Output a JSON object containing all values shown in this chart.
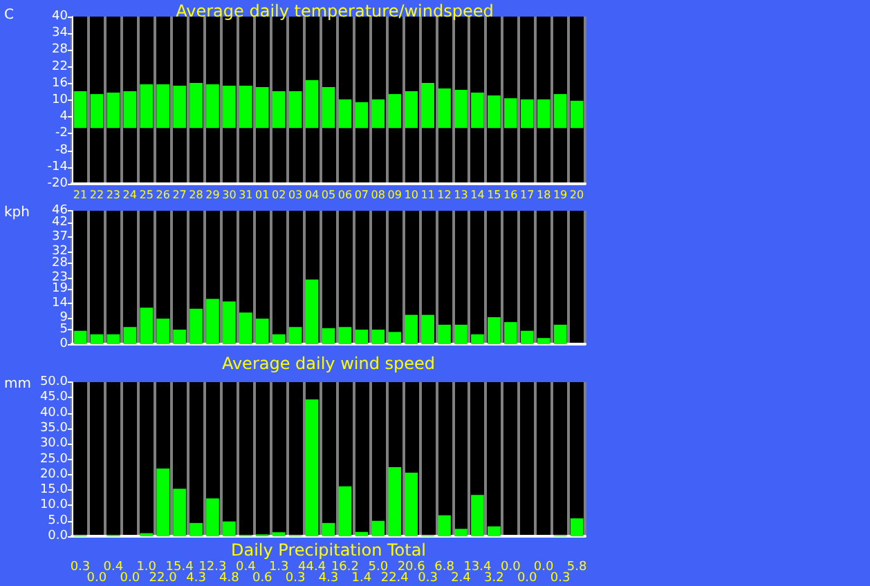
{
  "chart_data": [
    {
      "type": "bar",
      "title": "Average daily temperature/windspeed",
      "ylabel": "C",
      "categories": [
        "21",
        "22",
        "23",
        "24",
        "25",
        "26",
        "27",
        "28",
        "29",
        "30",
        "31",
        "01",
        "02",
        "03",
        "04",
        "05",
        "06",
        "07",
        "08",
        "09",
        "10",
        "11",
        "12",
        "13",
        "14",
        "15",
        "16",
        "17",
        "18",
        "19",
        "20"
      ],
      "values": [
        13.2,
        12.2,
        12.7,
        13.2,
        15.7,
        15.7,
        15.2,
        16.2,
        15.7,
        15.2,
        15.2,
        14.7,
        13.2,
        13.2,
        17.2,
        14.7,
        10.3,
        9.3,
        10.3,
        12.2,
        13.2,
        16.2,
        14.2,
        13.7,
        12.7,
        11.7,
        10.7,
        10.3,
        10.3,
        12.2,
        9.8
      ],
      "color": "#00ff00",
      "ylim": [
        -20,
        40
      ],
      "yticks": [
        -20,
        -14,
        -8,
        -2,
        4,
        10,
        16,
        22,
        28,
        34,
        40
      ],
      "grid": "x"
    },
    {
      "type": "bar",
      "xlabel": "Average daily wind speed",
      "ylabel": "kph",
      "categories": [
        "21",
        "22",
        "23",
        "24",
        "25",
        "26",
        "27",
        "28",
        "29",
        "30",
        "31",
        "01",
        "02",
        "03",
        "04",
        "05",
        "06",
        "07",
        "08",
        "09",
        "10",
        "11",
        "12",
        "13",
        "14",
        "15",
        "16",
        "17",
        "18",
        "19",
        "20"
      ],
      "values": [
        4.6,
        3.4,
        3.4,
        5.9,
        12.6,
        8.8,
        5.0,
        12.2,
        15.6,
        14.7,
        10.9,
        8.8,
        3.4,
        5.9,
        22.3,
        5.5,
        5.9,
        5.0,
        5.0,
        4.2,
        10.1,
        10.1,
        6.7,
        6.7,
        3.4,
        9.3,
        7.6,
        4.6,
        2.1,
        6.7,
        0
      ],
      "color": "#00ff00",
      "ylim": [
        0,
        46
      ],
      "yticks": [
        0,
        5,
        9,
        14,
        19,
        23,
        28,
        32,
        37,
        42,
        46
      ],
      "grid": "x",
      "tick_labels": "y"
    },
    {
      "type": "bar",
      "xlabel": "Daily Precipitation Total",
      "ylabel": "mm",
      "categories": [
        "21",
        "22",
        "23",
        "24",
        "25",
        "26",
        "27",
        "28",
        "29",
        "30",
        "31",
        "01",
        "02",
        "03",
        "04",
        "05",
        "06",
        "07",
        "08",
        "09",
        "10",
        "11",
        "12",
        "13",
        "14",
        "15",
        "16",
        "17",
        "18",
        "19",
        "20"
      ],
      "values": [
        0.3,
        0.0,
        0.4,
        0.0,
        1.0,
        22.0,
        15.4,
        4.3,
        12.3,
        4.8,
        0.4,
        0.6,
        1.3,
        0.3,
        44.4,
        4.3,
        16.2,
        1.4,
        5.0,
        22.4,
        20.6,
        0.3,
        6.8,
        2.4,
        13.4,
        3.2,
        0.0,
        0.0,
        0.0,
        0.3,
        5.8
      ],
      "value_labels": [
        "0.3",
        "0.0",
        "0.4",
        "0.0",
        "1.0",
        "22.0",
        "15.4",
        "4.3",
        "12.3",
        "4.8",
        "0.4",
        "0.6",
        "1.3",
        "0.3",
        "44.4",
        "4.3",
        "16.2",
        "1.4",
        "5.0",
        "22.4",
        "20.6",
        "0.3",
        "6.8",
        "2.4",
        "13.4",
        "3.2",
        "0.0",
        "0.0",
        "0.0",
        "0.3",
        "5.8"
      ],
      "color": "#00ff00",
      "ylim": [
        0,
        50
      ],
      "yticks": [
        {
          "value": 0,
          "label": "0.0"
        },
        {
          "value": 5,
          "label": "5.0"
        },
        {
          "value": 10,
          "label": "10.0"
        },
        {
          "value": 15,
          "label": "15.0"
        },
        {
          "value": 20,
          "label": "20.0"
        },
        {
          "value": 25,
          "label": "25.0"
        },
        {
          "value": 30,
          "label": "30.0"
        },
        {
          "value": 35,
          "label": "35.0"
        },
        {
          "value": 40,
          "label": "40.0"
        },
        {
          "value": 45,
          "label": "45.0"
        },
        {
          "value": 50,
          "label": "50.0"
        }
      ],
      "grid": "x",
      "tick_labels": "y"
    }
  ]
}
